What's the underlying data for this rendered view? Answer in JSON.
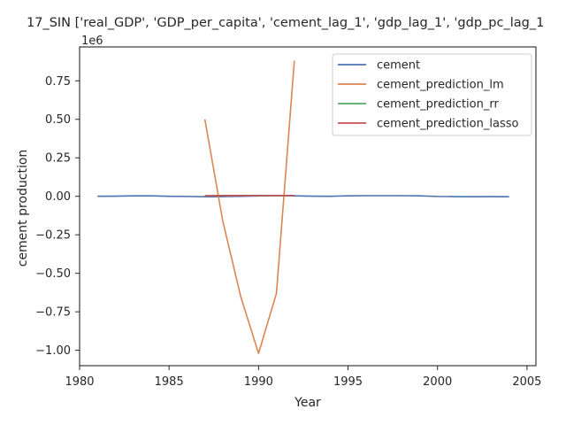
{
  "chart_data": {
    "type": "line",
    "title": "17_SIN ['real_GDP', 'GDP_per_capita', 'cement_lag_1', 'gdp_lag_1', 'gdp_pc_lag_1",
    "xlabel": "Year",
    "ylabel": "cement production",
    "y_offset_label": "1e6",
    "xlim": [
      1980,
      2005.5
    ],
    "ylim": [
      -1.1,
      0.97
    ],
    "x_ticks": [
      1980,
      1985,
      1990,
      1995,
      2000,
      2005
    ],
    "y_ticks": [
      -1.0,
      -0.75,
      -0.5,
      -0.25,
      0.0,
      0.25,
      0.5,
      0.75
    ],
    "x_tick_labels": [
      "1980",
      "1985",
      "1990",
      "1995",
      "2000",
      "2005"
    ],
    "y_tick_labels": [
      "−1.00",
      "−0.75",
      "−0.50",
      "−0.25",
      "0.00",
      "0.25",
      "0.50",
      "0.75"
    ],
    "grid": false,
    "legend_position": "top-right",
    "y_units_note": "values in millions (×1e6)",
    "series": [
      {
        "name": "cement",
        "color": "#4c72b0",
        "x": [
          1981,
          1982,
          1983,
          1984,
          1985,
          1986,
          1987,
          1988,
          1989,
          1990,
          1991,
          1992,
          1993,
          1994,
          1995,
          1996,
          1997,
          1998,
          1999,
          2000,
          2001,
          2002,
          2003,
          2004
        ],
        "y": [
          0.0,
          0.001,
          0.003,
          0.003,
          0.0,
          -0.001,
          -0.003,
          -0.002,
          0.0,
          0.002,
          0.004,
          0.003,
          0.001,
          0.0,
          0.003,
          0.004,
          0.004,
          0.004,
          0.003,
          -0.001,
          -0.002,
          -0.003,
          -0.002,
          -0.003
        ]
      },
      {
        "name": "cement_prediction_lm",
        "color": "#dd8452",
        "x": [
          1987,
          1988,
          1989,
          1990,
          1991,
          1992
        ],
        "y": [
          0.5,
          -0.16,
          -0.65,
          -1.02,
          -0.63,
          0.88
        ]
      },
      {
        "name": "cement_prediction_rr",
        "color": "#55a868",
        "x": [
          1987,
          1988,
          1989,
          1990,
          1991,
          1992
        ],
        "y": [
          0.003,
          0.004,
          0.004,
          0.004,
          0.004,
          0.004
        ]
      },
      {
        "name": "cement_prediction_lasso",
        "color": "#c44e52",
        "x": [
          1987,
          1988,
          1989,
          1990,
          1991,
          1992
        ],
        "y": [
          0.004,
          0.005,
          0.005,
          0.005,
          0.005,
          0.005
        ]
      }
    ]
  }
}
